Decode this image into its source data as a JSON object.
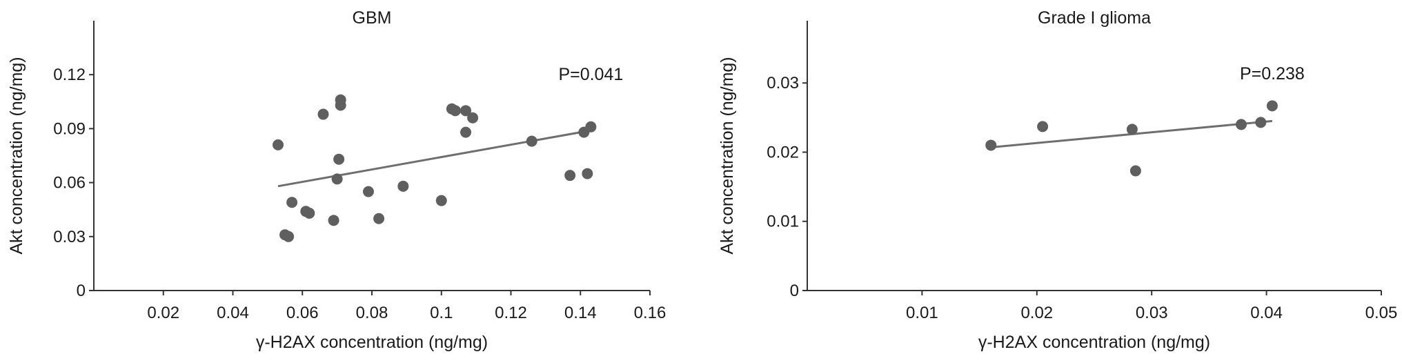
{
  "chart_data": [
    {
      "type": "scatter",
      "title": "GBM",
      "xlabel": "γ-H2AX concentration (ng/mg)",
      "ylabel": "Akt concentration (ng/mg)",
      "xlim": [
        0,
        0.16
      ],
      "ylim": [
        0,
        0.15
      ],
      "xticks": [
        0.02,
        0.04,
        0.06,
        0.08,
        0.1,
        0.12,
        0.14,
        0.16
      ],
      "xtick_labels": [
        "0.02",
        "0.04",
        "0.06",
        "0.08",
        "0.1",
        "0.12",
        "0.14",
        "0.16"
      ],
      "yticks": [
        0,
        0.03,
        0.06,
        0.09,
        0.12
      ],
      "ytick_labels": [
        "0",
        "0.03",
        "0.06",
        "0.09",
        "0.12"
      ],
      "grid": false,
      "color": "#5f5f5f",
      "annotation": "P=0.041",
      "annotation_pos": [
        0.143,
        0.117
      ],
      "x": [
        0.053,
        0.055,
        0.056,
        0.057,
        0.061,
        0.062,
        0.066,
        0.069,
        0.07,
        0.0705,
        0.071,
        0.071,
        0.079,
        0.082,
        0.089,
        0.1,
        0.103,
        0.104,
        0.107,
        0.107,
        0.109,
        0.126,
        0.137,
        0.141,
        0.142,
        0.143
      ],
      "y": [
        0.081,
        0.031,
        0.03,
        0.049,
        0.044,
        0.043,
        0.098,
        0.039,
        0.062,
        0.073,
        0.106,
        0.103,
        0.055,
        0.04,
        0.058,
        0.05,
        0.101,
        0.1,
        0.1,
        0.088,
        0.096,
        0.083,
        0.064,
        0.088,
        0.065,
        0.091
      ],
      "fit_line": {
        "x": [
          0.053,
          0.143
        ],
        "y": [
          0.058,
          0.089
        ]
      }
    },
    {
      "type": "scatter",
      "title": "Grade I glioma",
      "xlabel": "γ-H2AX concentration (ng/mg)",
      "ylabel": "Akt concentration (ng/mg)",
      "xlim": [
        0,
        0.05
      ],
      "ylim": [
        0,
        0.039
      ],
      "xticks": [
        0.01,
        0.02,
        0.03,
        0.04,
        0.05
      ],
      "xtick_labels": [
        "0.01",
        "0.02",
        "0.03",
        "0.04",
        "0.05"
      ],
      "yticks": [
        0,
        0.01,
        0.02,
        0.03
      ],
      "ytick_labels": [
        "0",
        "0.01",
        "0.02",
        "0.03"
      ],
      "grid": false,
      "color": "#5f5f5f",
      "annotation": "P=0.238",
      "annotation_pos": [
        0.0405,
        0.0305
      ],
      "x": [
        0.016,
        0.0205,
        0.0283,
        0.0286,
        0.0378,
        0.0395,
        0.0405
      ],
      "y": [
        0.021,
        0.0237,
        0.0233,
        0.0173,
        0.024,
        0.0243,
        0.0267
      ],
      "fit_line": {
        "x": [
          0.016,
          0.0405
        ],
        "y": [
          0.0207,
          0.0245
        ]
      }
    }
  ]
}
